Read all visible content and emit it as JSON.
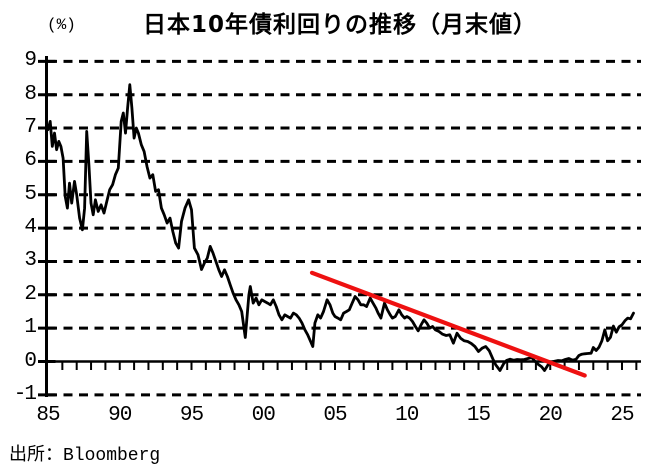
{
  "chart_data": {
    "type": "line",
    "title": "日本10年債利回りの推移（月末値）",
    "ylabel": "(%)",
    "source": "出所：Bloomberg",
    "ylim": [
      -1,
      9
    ],
    "xlim": [
      1985,
      2026
    ],
    "grid": "horizontal-dashed",
    "legend": "none",
    "y_ticks": [
      {
        "label": "9",
        "value": 9
      },
      {
        "label": "8",
        "value": 8
      },
      {
        "label": "7",
        "value": 7
      },
      {
        "label": "6",
        "value": 6
      },
      {
        "label": "5",
        "value": 5
      },
      {
        "label": "4",
        "value": 4
      },
      {
        "label": "3",
        "value": 3
      },
      {
        "label": "2",
        "value": 2
      },
      {
        "label": "1",
        "value": 1
      },
      {
        "label": "0",
        "value": 0
      },
      {
        "label": "-1",
        "value": -1
      }
    ],
    "x_ticks": [
      {
        "label": "85",
        "year": 1985
      },
      {
        "label": "90",
        "year": 1990
      },
      {
        "label": "95",
        "year": 1995
      },
      {
        "label": "00",
        "year": 2000
      },
      {
        "label": "05",
        "year": 2005
      },
      {
        "label": "10",
        "year": 2010
      },
      {
        "label": "15",
        "year": 2015
      },
      {
        "label": "20",
        "year": 2020
      },
      {
        "label": "25",
        "year": 2025
      }
    ],
    "series": [
      {
        "id": "jgb-10y-yield-monthly",
        "color": "#000000",
        "width": 2.8,
        "points": [
          [
            1985.0,
            6.95
          ],
          [
            1985.15,
            7.2
          ],
          [
            1985.3,
            6.45
          ],
          [
            1985.45,
            6.85
          ],
          [
            1985.6,
            6.35
          ],
          [
            1985.75,
            6.6
          ],
          [
            1985.9,
            6.45
          ],
          [
            1986.05,
            6.1
          ],
          [
            1986.2,
            4.95
          ],
          [
            1986.35,
            4.6
          ],
          [
            1986.5,
            5.35
          ],
          [
            1986.65,
            4.75
          ],
          [
            1986.85,
            5.4
          ],
          [
            1987.0,
            5.0
          ],
          [
            1987.2,
            4.3
          ],
          [
            1987.4,
            3.95
          ],
          [
            1987.55,
            4.6
          ],
          [
            1987.7,
            6.9
          ],
          [
            1987.85,
            5.9
          ],
          [
            1988.0,
            4.75
          ],
          [
            1988.15,
            4.4
          ],
          [
            1988.3,
            4.85
          ],
          [
            1988.5,
            4.5
          ],
          [
            1988.7,
            4.7
          ],
          [
            1988.9,
            4.45
          ],
          [
            1989.1,
            4.8
          ],
          [
            1989.3,
            5.15
          ],
          [
            1989.5,
            5.3
          ],
          [
            1989.7,
            5.6
          ],
          [
            1989.9,
            5.8
          ],
          [
            1990.1,
            7.2
          ],
          [
            1990.25,
            7.45
          ],
          [
            1990.4,
            6.85
          ],
          [
            1990.55,
            7.6
          ],
          [
            1990.7,
            8.3
          ],
          [
            1990.85,
            7.6
          ],
          [
            1991.0,
            6.7
          ],
          [
            1991.15,
            7.0
          ],
          [
            1991.3,
            6.85
          ],
          [
            1991.5,
            6.5
          ],
          [
            1991.7,
            6.3
          ],
          [
            1991.9,
            5.85
          ],
          [
            1992.1,
            5.5
          ],
          [
            1992.3,
            5.6
          ],
          [
            1992.5,
            5.1
          ],
          [
            1992.7,
            5.15
          ],
          [
            1992.9,
            4.6
          ],
          [
            1993.1,
            4.4
          ],
          [
            1993.3,
            4.15
          ],
          [
            1993.5,
            4.3
          ],
          [
            1993.7,
            3.9
          ],
          [
            1993.9,
            3.55
          ],
          [
            1994.1,
            3.4
          ],
          [
            1994.3,
            4.2
          ],
          [
            1994.55,
            4.6
          ],
          [
            1994.8,
            4.85
          ],
          [
            1995.0,
            4.55
          ],
          [
            1995.2,
            3.4
          ],
          [
            1995.45,
            3.2
          ],
          [
            1995.7,
            2.76
          ],
          [
            1995.9,
            2.95
          ],
          [
            1996.1,
            3.1
          ],
          [
            1996.3,
            3.45
          ],
          [
            1996.5,
            3.25
          ],
          [
            1996.7,
            3.0
          ],
          [
            1996.9,
            2.75
          ],
          [
            1997.1,
            2.55
          ],
          [
            1997.3,
            2.75
          ],
          [
            1997.5,
            2.55
          ],
          [
            1997.7,
            2.3
          ],
          [
            1997.9,
            2.05
          ],
          [
            1998.1,
            1.85
          ],
          [
            1998.3,
            1.7
          ],
          [
            1998.5,
            1.5
          ],
          [
            1998.75,
            0.72
          ],
          [
            1999.0,
            2.0
          ],
          [
            1999.1,
            2.25
          ],
          [
            1999.3,
            1.75
          ],
          [
            1999.5,
            1.9
          ],
          [
            1999.7,
            1.7
          ],
          [
            1999.9,
            1.85
          ],
          [
            2000.1,
            1.8
          ],
          [
            2000.3,
            1.75
          ],
          [
            2000.5,
            1.7
          ],
          [
            2000.7,
            1.85
          ],
          [
            2000.9,
            1.65
          ],
          [
            2001.1,
            1.4
          ],
          [
            2001.3,
            1.25
          ],
          [
            2001.5,
            1.4
          ],
          [
            2001.7,
            1.35
          ],
          [
            2001.9,
            1.3
          ],
          [
            2002.1,
            1.45
          ],
          [
            2002.3,
            1.4
          ],
          [
            2002.5,
            1.3
          ],
          [
            2002.7,
            1.15
          ],
          [
            2002.9,
            0.95
          ],
          [
            2003.1,
            0.8
          ],
          [
            2003.3,
            0.6
          ],
          [
            2003.45,
            0.45
          ],
          [
            2003.6,
            1.15
          ],
          [
            2003.8,
            1.4
          ],
          [
            2004.0,
            1.3
          ],
          [
            2004.2,
            1.5
          ],
          [
            2004.45,
            1.85
          ],
          [
            2004.65,
            1.7
          ],
          [
            2004.85,
            1.45
          ],
          [
            2005.0,
            1.35
          ],
          [
            2005.2,
            1.3
          ],
          [
            2005.4,
            1.25
          ],
          [
            2005.6,
            1.45
          ],
          [
            2005.8,
            1.5
          ],
          [
            2006.0,
            1.55
          ],
          [
            2006.2,
            1.75
          ],
          [
            2006.4,
            1.95
          ],
          [
            2006.6,
            1.85
          ],
          [
            2006.8,
            1.7
          ],
          [
            2007.0,
            1.7
          ],
          [
            2007.2,
            1.65
          ],
          [
            2007.45,
            1.9
          ],
          [
            2007.65,
            1.75
          ],
          [
            2007.85,
            1.6
          ],
          [
            2008.0,
            1.45
          ],
          [
            2008.2,
            1.3
          ],
          [
            2008.45,
            1.75
          ],
          [
            2008.65,
            1.55
          ],
          [
            2008.85,
            1.4
          ],
          [
            2009.0,
            1.3
          ],
          [
            2009.2,
            1.35
          ],
          [
            2009.45,
            1.55
          ],
          [
            2009.65,
            1.4
          ],
          [
            2009.85,
            1.3
          ],
          [
            2010.0,
            1.35
          ],
          [
            2010.2,
            1.3
          ],
          [
            2010.4,
            1.2
          ],
          [
            2010.6,
            1.05
          ],
          [
            2010.8,
            0.92
          ],
          [
            2011.0,
            1.1
          ],
          [
            2011.2,
            1.25
          ],
          [
            2011.4,
            1.15
          ],
          [
            2011.6,
            1.0
          ],
          [
            2011.8,
            1.05
          ],
          [
            2012.0,
            0.95
          ],
          [
            2012.25,
            0.9
          ],
          [
            2012.5,
            0.82
          ],
          [
            2012.75,
            0.78
          ],
          [
            2013.0,
            0.8
          ],
          [
            2013.25,
            0.55
          ],
          [
            2013.5,
            0.85
          ],
          [
            2013.75,
            0.7
          ],
          [
            2014.0,
            0.62
          ],
          [
            2014.25,
            0.6
          ],
          [
            2014.5,
            0.54
          ],
          [
            2014.75,
            0.45
          ],
          [
            2015.0,
            0.3
          ],
          [
            2015.25,
            0.4
          ],
          [
            2015.5,
            0.45
          ],
          [
            2015.75,
            0.32
          ],
          [
            2016.0,
            0.08
          ],
          [
            2016.2,
            -0.1
          ],
          [
            2016.5,
            -0.27
          ],
          [
            2016.75,
            -0.07
          ],
          [
            2016.95,
            0.03
          ],
          [
            2017.2,
            0.07
          ],
          [
            2017.45,
            0.04
          ],
          [
            2017.7,
            0.06
          ],
          [
            2017.95,
            0.05
          ],
          [
            2018.2,
            0.06
          ],
          [
            2018.45,
            0.09
          ],
          [
            2018.7,
            0.12
          ],
          [
            2018.95,
            0.0
          ],
          [
            2019.15,
            -0.08
          ],
          [
            2019.4,
            -0.16
          ],
          [
            2019.6,
            -0.27
          ],
          [
            2019.85,
            -0.1
          ],
          [
            2020.05,
            -0.02
          ],
          [
            2020.3,
            0.01
          ],
          [
            2020.55,
            0.03
          ],
          [
            2020.8,
            0.02
          ],
          [
            2021.05,
            0.06
          ],
          [
            2021.3,
            0.09
          ],
          [
            2021.55,
            0.04
          ],
          [
            2021.8,
            0.07
          ],
          [
            2022.0,
            0.18
          ],
          [
            2022.2,
            0.22
          ],
          [
            2022.4,
            0.23
          ],
          [
            2022.6,
            0.24
          ],
          [
            2022.85,
            0.25
          ],
          [
            2023.0,
            0.42
          ],
          [
            2023.2,
            0.33
          ],
          [
            2023.4,
            0.43
          ],
          [
            2023.6,
            0.62
          ],
          [
            2023.8,
            0.95
          ],
          [
            2024.0,
            0.62
          ],
          [
            2024.2,
            0.73
          ],
          [
            2024.4,
            1.06
          ],
          [
            2024.6,
            0.88
          ],
          [
            2024.8,
            1.04
          ],
          [
            2025.0,
            1.1
          ],
          [
            2025.2,
            1.22
          ],
          [
            2025.4,
            1.3
          ],
          [
            2025.6,
            1.28
          ],
          [
            2025.8,
            1.45
          ]
        ]
      },
      {
        "id": "downtrend-line",
        "color": "#ee1111",
        "width": 4.2,
        "points": [
          [
            2003.4,
            2.66
          ],
          [
            2022.4,
            -0.42
          ]
        ]
      }
    ]
  }
}
